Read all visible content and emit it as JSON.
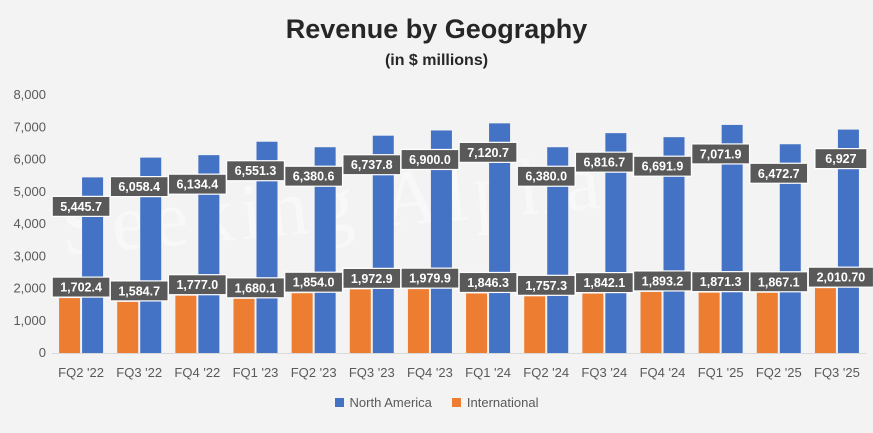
{
  "chart_data": {
    "type": "bar",
    "title": "Revenue by Geography",
    "subtitle": "(in $ millions)",
    "watermark": "Seeking Alpha",
    "categories": [
      "FQ2 '22",
      "FQ3 '22",
      "FQ4 '22",
      "FQ1 '23",
      "FQ2 '23",
      "FQ3 '23",
      "FQ4 '23",
      "FQ1 '24",
      "FQ2 '24",
      "FQ3 '24",
      "FQ4 '24",
      "FQ1 '25",
      "FQ2 '25",
      "FQ3 '25"
    ],
    "series": [
      {
        "name": "International",
        "color": "#ed7d31",
        "values": [
          1702.4,
          1584.7,
          1777.0,
          1680.1,
          1854.0,
          1972.9,
          1979.9,
          1846.3,
          1757.3,
          1842.1,
          1893.2,
          1871.3,
          1867.1,
          2010.7
        ],
        "labels": [
          "1,702.4",
          "1,584.7",
          "1,777.0",
          "1,680.1",
          "1,854.0",
          "1,972.9",
          "1,979.9",
          "1,846.3",
          "1,757.3",
          "1,842.1",
          "1,893.2",
          "1,871.3",
          "1,867.1",
          "2,010.70"
        ]
      },
      {
        "name": "North America",
        "color": "#4472c4",
        "values": [
          5445.7,
          6058.4,
          6134.4,
          6551.3,
          6380.6,
          6737.8,
          6900.0,
          7120.7,
          6380.0,
          6816.7,
          6691.9,
          7071.9,
          6472.7,
          6927
        ],
        "labels": [
          "5,445.7",
          "6,058.4",
          "6,134.4",
          "6,551.3",
          "6,380.6",
          "6,737.8",
          "6,900.0",
          "7,120.7",
          "6,380.0",
          "6,816.7",
          "6,691.9",
          "7,071.9",
          "6,472.7",
          "6,927"
        ]
      }
    ],
    "ylim": [
      0,
      8000
    ],
    "yticks": [
      0,
      1000,
      2000,
      3000,
      4000,
      5000,
      6000,
      7000,
      8000
    ],
    "ytick_labels": [
      "0",
      "1,000",
      "2,000",
      "3,000",
      "4,000",
      "5,000",
      "6,000",
      "7,000",
      "8,000"
    ],
    "legend_position": "bottom",
    "grid": false
  },
  "legend": {
    "north_america": "North America",
    "international": "International"
  }
}
